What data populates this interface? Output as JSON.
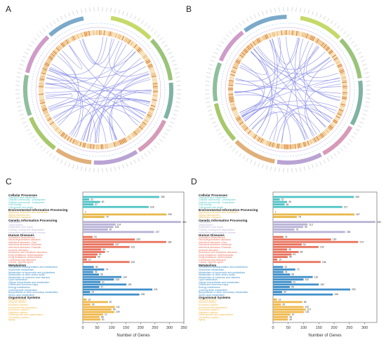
{
  "panels": {
    "a": "A",
    "b": "B",
    "c": "C",
    "d": "D"
  },
  "colors": {
    "cellular": "#4fc3c6",
    "environmental": "#e8b84a",
    "genetic": "#b9b2d6",
    "human": "#e8735d",
    "metabolism": "#3f8fc9",
    "organismal": "#f0b84c",
    "link": "#8a8de6",
    "heat": "#e39a3a"
  },
  "chart_data": [
    {
      "type": "bar",
      "panel": "C",
      "orientation": "horizontal",
      "xlabel": "Number of Genes",
      "xticks": [
        0,
        50,
        100,
        150,
        200,
        250,
        300,
        350
      ],
      "xlim": [
        0,
        350
      ],
      "groups": [
        {
          "name": "Cellular Processes",
          "color": "#4fc3c6",
          "items": [
            {
              "label": "Transport and catabolism",
              "value": 265
            },
            {
              "label": "Cellular community - prokaryotes",
              "value": 22
            },
            {
              "label": "Cellular community - eukaryotes",
              "value": 60
            },
            {
              "label": "Cell motility",
              "value": 37
            },
            {
              "label": "Cell growth and death",
              "value": 228
            }
          ]
        },
        {
          "name": "Environmental Information Processing",
          "color": "#e8b84a",
          "items": [
            {
              "label": "Signaling molecules and interaction",
              "value": 1
            },
            {
              "label": "Signal transduction",
              "value": 290
            },
            {
              "label": "Membrane transport",
              "value": 75
            }
          ]
        },
        {
          "name": "Genetic Information Processing",
          "color": "#b9b2d6",
          "items": [
            {
              "label": "Translation",
              "value": 340
            },
            {
              "label": "Transcription",
              "value": 114
            },
            {
              "label": "Replication and repair",
              "value": 106
            },
            {
              "label": "Folding, sorting and degradation",
              "value": 87
            },
            {
              "label": "Information processing in viruses",
              "value": 247
            }
          ]
        },
        {
          "name": "Human Diseases",
          "color": "#e8735d",
          "items": [
            {
              "label": "Substance dependence",
              "value": 34
            },
            {
              "label": "Neurodegenerative diseases",
              "value": 180
            },
            {
              "label": "Infectious diseases: Viral",
              "value": 289
            },
            {
              "label": "Infectious diseases: Bacterial",
              "value": 107
            },
            {
              "label": "Infectious diseases: Parasitic",
              "value": 162
            },
            {
              "label": "Immune diseases",
              "value": 64
            },
            {
              "label": "Endocrine and metabolic diseases",
              "value": 77
            },
            {
              "label": "Drug resistance: Antineoplastic",
              "value": 51
            },
            {
              "label": "Drug resistance: Antimicrobial",
              "value": 46
            },
            {
              "label": "Cardiovascular diseases",
              "value": 14
            },
            {
              "label": "Cancer: specific types",
              "value": 162
            }
          ]
        },
        {
          "name": "Metabolism",
          "color": "#3f8fc9",
          "items": [
            {
              "label": "Xenobiotics biodegradation and metabolism",
              "value": 38
            },
            {
              "label": "Nucleotide metabolism",
              "value": 74
            },
            {
              "label": "Metabolism of terpenoids and polyketides",
              "value": 36
            },
            {
              "label": "Metabolism of other amino acids",
              "value": 56
            },
            {
              "label": "Metabolism of cofactors and vitamins",
              "value": 134
            },
            {
              "label": "Lipid metabolism",
              "value": 108
            },
            {
              "label": "Glycan biosynthesis and metabolism",
              "value": 61
            },
            {
              "label": "Global and overview maps",
              "value": 151
            },
            {
              "label": "Energy metabolism",
              "value": 57
            },
            {
              "label": "Carbohydrate metabolism",
              "value": 241
            },
            {
              "label": "Biosynthesis of other secondary metabolites",
              "value": 25
            },
            {
              "label": "Amino acid metabolism",
              "value": 196
            }
          ]
        },
        {
          "name": "Organismal Systems",
          "color": "#f0b84c",
          "items": [
            {
              "label": "Nervous system",
              "value": 13
            },
            {
              "label": "Immune system",
              "value": 87
            },
            {
              "label": "Excretory system",
              "value": 26
            },
            {
              "label": "Environmental adaptation",
              "value": 111
            },
            {
              "label": "Endocrine system",
              "value": 99
            },
            {
              "label": "Digestive system",
              "value": 109
            },
            {
              "label": "Development and regeneration",
              "value": 70
            },
            {
              "label": "Circulatory system",
              "value": 58
            },
            {
              "label": "Aging",
              "value": 61
            }
          ]
        }
      ]
    },
    {
      "type": "bar",
      "panel": "D",
      "orientation": "horizontal",
      "xlabel": "Number of Genes",
      "xticks": [
        0,
        50,
        100,
        150,
        200,
        250,
        300
      ],
      "xlim": [
        0,
        340
      ],
      "groups": [
        {
          "name": "Cellular Processes",
          "color": "#4fc3c6",
          "items": [
            {
              "label": "Transport and catabolism",
              "value": 265
            },
            {
              "label": "Cellular community - prokaryotes",
              "value": 22
            },
            {
              "label": "Cellular community - eukaryotes",
              "value": 46
            },
            {
              "label": "Cell motility",
              "value": 38
            },
            {
              "label": "Cell growth and death",
              "value": 227
            }
          ]
        },
        {
          "name": "Environmental Information Processing",
          "color": "#e8b84a",
          "items": [
            {
              "label": "Signaling molecules and interaction",
              "value": 1
            },
            {
              "label": "Signal transduction",
              "value": 267
            },
            {
              "label": "Membrane transport",
              "value": 78
            }
          ]
        },
        {
          "name": "Genetic Information Processing",
          "color": "#b9b2d6",
          "items": [
            {
              "label": "Translation",
              "value": 335
            },
            {
              "label": "Transcription",
              "value": 113
            },
            {
              "label": "Replication and repair",
              "value": 99
            },
            {
              "label": "Folding, sorting and degradation",
              "value": 70
            },
            {
              "label": "Information processing in viruses",
              "value": 236
            }
          ]
        },
        {
          "name": "Human Diseases",
          "color": "#e8735d",
          "items": [
            {
              "label": "Substance dependence",
              "value": 34
            },
            {
              "label": "Neurodegenerative diseases",
              "value": 190
            },
            {
              "label": "Infectious diseases: Viral",
              "value": 279
            },
            {
              "label": "Infectious diseases: Bacterial",
              "value": 94
            },
            {
              "label": "Infectious diseases: Parasitic",
              "value": 149
            },
            {
              "label": "Immune diseases",
              "value": 46
            },
            {
              "label": "Endocrine and metabolic diseases",
              "value": 84
            },
            {
              "label": "Drug resistance: Antineoplastic",
              "value": 61
            },
            {
              "label": "Drug resistance: Antimicrobial",
              "value": 48
            },
            {
              "label": "Cardiovascular diseases",
              "value": 14
            },
            {
              "label": "Cancer: specific types",
              "value": 156
            }
          ]
        },
        {
          "name": "Metabolism",
          "color": "#3f8fc9",
          "items": [
            {
              "label": "Xenobiotics biodegradation and metabolism",
              "value": 33
            },
            {
              "label": "Nucleotide metabolism",
              "value": 73
            },
            {
              "label": "Metabolism of terpenoids and polyketides",
              "value": 34
            },
            {
              "label": "Metabolism of other amino acids",
              "value": 56
            },
            {
              "label": "Metabolism of cofactors and vitamins",
              "value": 130
            },
            {
              "label": "Lipid metabolism",
              "value": 100
            },
            {
              "label": "Glycan biosynthesis and metabolism",
              "value": 61
            },
            {
              "label": "Global and overview maps",
              "value": 150
            },
            {
              "label": "Energy metabolism",
              "value": 55
            },
            {
              "label": "Carbohydrate metabolism",
              "value": 253
            },
            {
              "label": "Biosynthesis of other secondary metabolites",
              "value": 30
            },
            {
              "label": "Amino acid metabolism",
              "value": 196
            }
          ]
        },
        {
          "name": "Organismal Systems",
          "color": "#f0b84c",
          "items": [
            {
              "label": "Nervous system",
              "value": 13
            },
            {
              "label": "Immune system",
              "value": 96
            },
            {
              "label": "Excretory system",
              "value": 26
            },
            {
              "label": "Environmental adaptation",
              "value": 100
            },
            {
              "label": "Endocrine system",
              "value": 107
            },
            {
              "label": "Digestive system",
              "value": 101
            },
            {
              "label": "Development and regeneration",
              "value": 57
            },
            {
              "label": "Circulatory system",
              "value": 49
            },
            {
              "label": "Aging",
              "value": 49
            }
          ]
        }
      ]
    }
  ]
}
